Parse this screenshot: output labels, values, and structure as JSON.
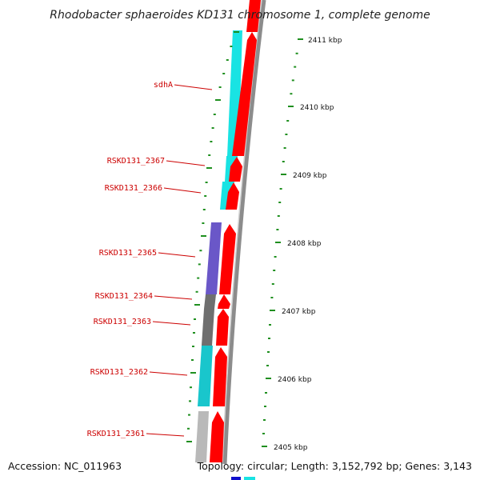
{
  "title": "Rhodobacter sphaeroides KD131 chromosome 1, complete genome",
  "footer": {
    "accession": "Accession: NC_011963",
    "topology": "Topology: circular; Length: 3,152,792 bp; Genes: 3,143"
  },
  "colors": {
    "background": "#ffffff",
    "backbone": "#8c8c8c",
    "forward_strand": "#ff0000",
    "label_line": "#cc0000",
    "tick": "#1f8f1f",
    "cyan_gene": "#19e3e3",
    "purple_gene": "#6a57c8",
    "dark_gray_gene": "#6f6f6f",
    "light_gray_gene": "#b9b9b9",
    "blue_gene": "#1010cc"
  },
  "scale": {
    "unit": "kbp",
    "ticks": [
      {
        "label": "2411 kbp"
      },
      {
        "label": "2410 kbp"
      },
      {
        "label": "2409 kbp"
      },
      {
        "label": "2408 kbp"
      },
      {
        "label": "2407 kbp"
      },
      {
        "label": "2406 kbp"
      },
      {
        "label": "2405 kbp"
      }
    ]
  },
  "gene_labels": [
    {
      "text": "sdhA"
    },
    {
      "text": "RSKD131_2367"
    },
    {
      "text": "RSKD131_2366"
    },
    {
      "text": "RSKD131_2365"
    },
    {
      "text": "RSKD131_2364"
    },
    {
      "text": "RSKD131_2363"
    },
    {
      "text": "RSKD131_2362"
    },
    {
      "text": "RSKD131_2361"
    }
  ]
}
